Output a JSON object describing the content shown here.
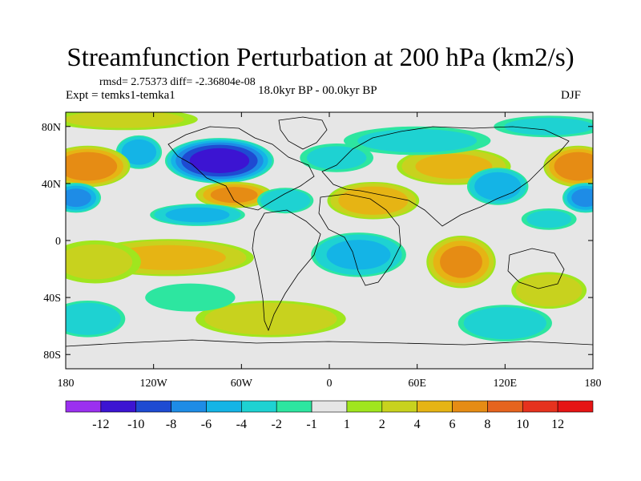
{
  "title": "Streamfunction Perturbation at 200 hPa (km2/s)",
  "stats": {
    "rmsd_text": "rmsd= 2.75373 diff= -2.36804e-08"
  },
  "experiment_label": "Expt = temks1-temka1",
  "period_label": "18.0kyr BP - 00.0kyr BP",
  "season_label": "DJF",
  "map": {
    "projection": "cylindrical equidistant",
    "lon_range": [
      -180,
      180
    ],
    "lat_range": [
      -90,
      90
    ],
    "lon_ticks": [
      {
        "value": -180,
        "label": "180"
      },
      {
        "value": -120,
        "label": "120W"
      },
      {
        "value": -60,
        "label": "60W"
      },
      {
        "value": 0,
        "label": "0"
      },
      {
        "value": 60,
        "label": "60E"
      },
      {
        "value": 120,
        "label": "120E"
      },
      {
        "value": 180,
        "label": "180"
      }
    ],
    "lat_ticks": [
      {
        "value": 80,
        "label": "80N"
      },
      {
        "value": 40,
        "label": "40N"
      },
      {
        "value": 0,
        "label": "0"
      },
      {
        "value": -40,
        "label": "40S"
      },
      {
        "value": -80,
        "label": "80S"
      }
    ],
    "anomalies": [
      {
        "lon": -75,
        "lat": 56,
        "value": -10,
        "rlon": 28,
        "rlat": 12
      },
      {
        "lon": -130,
        "lat": 62,
        "value": -5,
        "rlon": 12,
        "rlat": 9
      },
      {
        "lon": -165,
        "lat": 52,
        "value": 7,
        "rlon": 22,
        "rlat": 11
      },
      {
        "lon": 170,
        "lat": 52,
        "value": 7,
        "rlon": 18,
        "rlat": 11
      },
      {
        "lon": -65,
        "lat": 32,
        "value": 6,
        "rlon": 20,
        "rlat": 7
      },
      {
        "lon": -173,
        "lat": 30,
        "value": -6,
        "rlon": 13,
        "rlat": 8
      },
      {
        "lon": 175,
        "lat": 30,
        "value": -6,
        "rlon": 12,
        "rlat": 8
      },
      {
        "lon": 30,
        "lat": 28,
        "value": 5,
        "rlon": 24,
        "rlat": 10
      },
      {
        "lon": 85,
        "lat": 52,
        "value": 4,
        "rlon": 30,
        "rlat": 10
      },
      {
        "lon": 115,
        "lat": 38,
        "value": -5,
        "rlon": 16,
        "rlat": 10
      },
      {
        "lon": -90,
        "lat": 18,
        "value": -4,
        "rlon": 25,
        "rlat": 6
      },
      {
        "lon": -30,
        "lat": 28,
        "value": -3,
        "rlon": 15,
        "rlat": 7
      },
      {
        "lon": 20,
        "lat": -10,
        "value": -4,
        "rlon": 25,
        "rlat": 12
      },
      {
        "lon": 90,
        "lat": -15,
        "value": 6,
        "rlon": 18,
        "rlat": 14
      },
      {
        "lon": -110,
        "lat": -12,
        "value": 4,
        "rlon": 45,
        "rlat": 10
      },
      {
        "lon": -160,
        "lat": -15,
        "value": 2,
        "rlon": 25,
        "rlat": 12
      },
      {
        "lon": 150,
        "lat": -35,
        "value": 3,
        "rlon": 20,
        "rlat": 10
      },
      {
        "lon": -40,
        "lat": -55,
        "value": 3,
        "rlon": 40,
        "rlat": 10
      },
      {
        "lon": 120,
        "lat": -58,
        "value": -3,
        "rlon": 25,
        "rlat": 10
      },
      {
        "lon": -165,
        "lat": -55,
        "value": -3,
        "rlon": 20,
        "rlat": 10
      },
      {
        "lon": -95,
        "lat": -40,
        "value": -1.5,
        "rlon": 25,
        "rlat": 8
      },
      {
        "lon": 5,
        "lat": 58,
        "value": -2,
        "rlon": 20,
        "rlat": 8
      },
      {
        "lon": 60,
        "lat": 70,
        "value": -2,
        "rlon": 40,
        "rlat": 8
      },
      {
        "lon": 150,
        "lat": 80,
        "value": -2,
        "rlon": 30,
        "rlat": 6
      },
      {
        "lon": 150,
        "lat": 15,
        "value": -2,
        "rlon": 15,
        "rlat": 6
      },
      {
        "lon": -140,
        "lat": 85,
        "value": 2,
        "rlon": 40,
        "rlat": 6
      }
    ]
  },
  "colorbar": {
    "levels": [
      -12,
      -10,
      -8,
      -6,
      -4,
      -2,
      -1,
      1,
      2,
      4,
      6,
      8,
      10,
      12
    ],
    "labels": [
      "-12",
      "-10",
      "-8",
      "-6",
      "-4",
      "-2",
      "-1",
      "1",
      "2",
      "4",
      "6",
      "8",
      "10",
      "12"
    ],
    "colors": [
      "#9b30f0",
      "#3c14d2",
      "#1e4bd2",
      "#1e8ce6",
      "#14b4e6",
      "#1ed2d2",
      "#2de6a0",
      "#e6e6e6",
      "#a0e61e",
      "#c8d21e",
      "#e6b414",
      "#e68c14",
      "#e6641e",
      "#e6321e",
      "#e61414"
    ]
  },
  "palette": {
    "land_outline": "#000000",
    "neutral": "#e6e6e6"
  }
}
